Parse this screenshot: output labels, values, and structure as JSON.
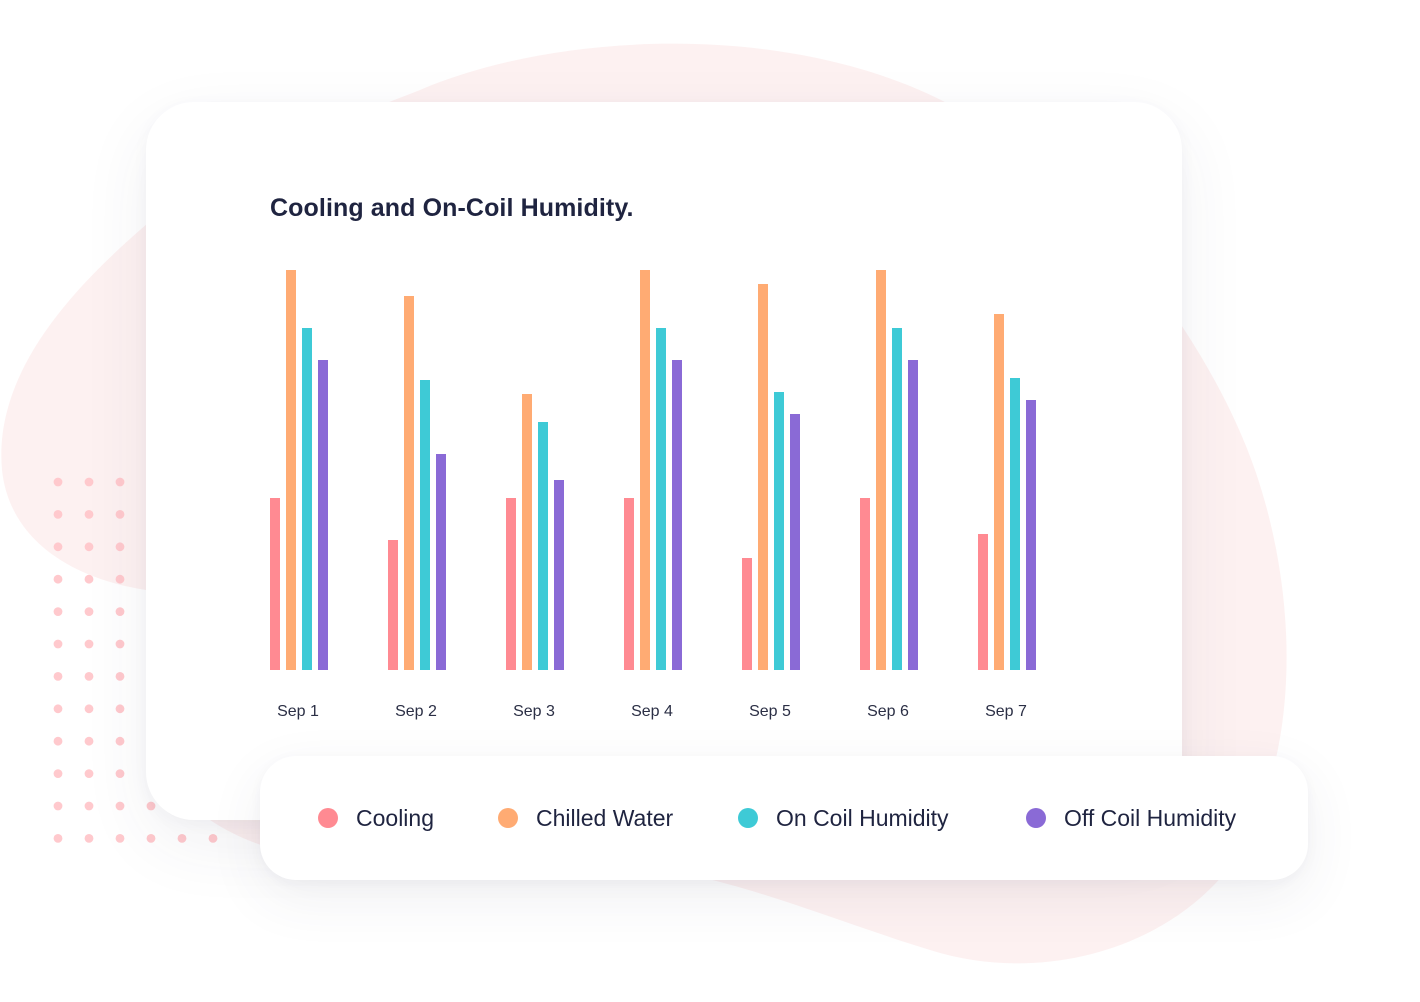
{
  "chart_data": {
    "type": "bar",
    "title": "Cooling and On-Coil Humidity.",
    "xlabel": "",
    "ylabel": "",
    "ylim": [
      0,
      100
    ],
    "grid": false,
    "y_axis_visible": false,
    "legend_position": "bottom",
    "categories": [
      "Sep 1",
      "Sep 2",
      "Sep 3",
      "Sep 4",
      "Sep 5",
      "Sep 6",
      "Sep 7"
    ],
    "series": [
      {
        "name": "Cooling",
        "color": "#ff8a92",
        "values": [
          43,
          32.5,
          43,
          43,
          28,
          43,
          34
        ]
      },
      {
        "name": "Chilled Water",
        "color": "#ffab73",
        "values": [
          100,
          93.5,
          69,
          100,
          96.5,
          100,
          89
        ]
      },
      {
        "name": "On Coil Humidity",
        "color": "#3ecad6",
        "values": [
          85.5,
          72.5,
          62,
          85.5,
          69.5,
          85.5,
          73
        ]
      },
      {
        "name": "Off Coil Humidity",
        "color": "#8a6ad6",
        "values": [
          77.5,
          54,
          47.5,
          77.5,
          64,
          77.5,
          67.5
        ]
      }
    ]
  }
}
